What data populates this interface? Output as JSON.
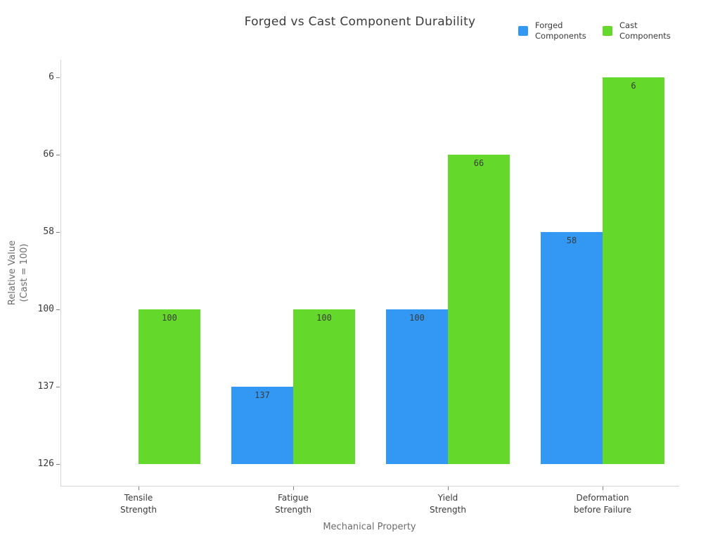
{
  "chart_data": {
    "type": "bar",
    "title": "Forged vs Cast Component Durability",
    "xlabel": "Mechanical Property",
    "ylabel": "Relative Value\n(Cast = 100)",
    "categories": [
      "Tensile\nStrength",
      "Fatigue\nStrength",
      "Yield\nStrength",
      "Deformation\nbefore Failure"
    ],
    "series": [
      {
        "name": "Forged Components",
        "legend_label": "Forged\nComponents",
        "color": "#3398f4",
        "values": [
          null,
          137,
          100,
          58
        ]
      },
      {
        "name": "Cast Components",
        "legend_label": "Cast\nComponents",
        "color": "#64d92b",
        "values": [
          100,
          100,
          66,
          6
        ]
      }
    ],
    "bar_value_labels": {
      "forged": [
        null,
        "137",
        "100",
        "58"
      ],
      "cast": [
        "100",
        "100",
        "66",
        "6"
      ]
    },
    "y_ticks_bottom_to_top": [
      "126",
      "137",
      "100",
      "58",
      "66",
      "6"
    ],
    "legend_position": "top-right",
    "grid": "off",
    "note_colors": {
      "text_dark": "#3a3a3a",
      "axis_title_gray": "#6c6c6c",
      "spine_gray": "#d4d4d4"
    }
  }
}
